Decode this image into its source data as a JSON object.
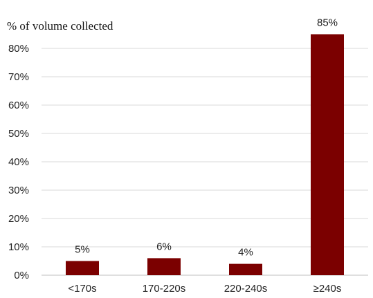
{
  "chart_data": {
    "type": "bar",
    "title": "",
    "xlabel": "",
    "ylabel": "% of volume collected",
    "categories": [
      "<170s",
      "170-220s",
      "220-240s",
      "≥240s"
    ],
    "values": [
      5,
      6,
      4,
      85
    ],
    "data_labels": [
      "5%",
      "6%",
      "4%",
      "85%"
    ],
    "ylim": [
      0,
      80
    ],
    "yticks": [
      0,
      10,
      20,
      30,
      40,
      50,
      60,
      70,
      80
    ],
    "ytick_labels": [
      "0%",
      "10%",
      "20%",
      "30%",
      "40%",
      "50%",
      "60%",
      "70%",
      "80%"
    ],
    "grid": true,
    "legend": "none",
    "colors": {
      "bar": "#7b0000",
      "grid": "#d9d9d9"
    }
  }
}
